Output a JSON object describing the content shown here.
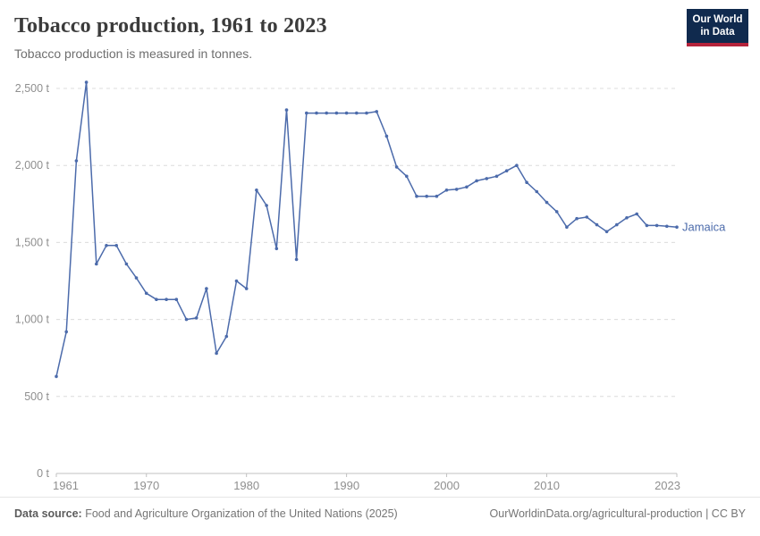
{
  "header": {
    "title": "Tobacco production, 1961 to 2023",
    "subtitle": "Tobacco production is measured in tonnes."
  },
  "logo": {
    "line1": "Our World",
    "line2": "in Data",
    "bg_color": "#102a4e",
    "bar_color": "#b5233b"
  },
  "chart_data": {
    "type": "line",
    "title": "Tobacco production, 1961 to 2023",
    "unit": "t",
    "xlim": [
      1961,
      2023
    ],
    "ylim": [
      0,
      2500
    ],
    "grid": "horizontal-dashed",
    "legend_position": "end-of-line",
    "x_ticks": [
      {
        "value": 1961,
        "label": "1961"
      },
      {
        "value": 1970,
        "label": "1970"
      },
      {
        "value": 1980,
        "label": "1980"
      },
      {
        "value": 1990,
        "label": "1990"
      },
      {
        "value": 2000,
        "label": "2000"
      },
      {
        "value": 2010,
        "label": "2010"
      },
      {
        "value": 2023,
        "label": "2023"
      }
    ],
    "y_ticks": [
      {
        "value": 0,
        "label": "0 t"
      },
      {
        "value": 500,
        "label": "500 t"
      },
      {
        "value": 1000,
        "label": "1,000 t"
      },
      {
        "value": 1500,
        "label": "1,500 t"
      },
      {
        "value": 2000,
        "label": "2,000 t"
      },
      {
        "value": 2500,
        "label": "2,500 t"
      }
    ],
    "series": [
      {
        "name": "Jamaica",
        "color": "#4c6bab",
        "years": [
          1961,
          1962,
          1963,
          1964,
          1965,
          1966,
          1967,
          1968,
          1969,
          1970,
          1971,
          1972,
          1973,
          1974,
          1975,
          1976,
          1977,
          1978,
          1979,
          1980,
          1981,
          1982,
          1983,
          1984,
          1985,
          1986,
          1987,
          1988,
          1989,
          1990,
          1991,
          1992,
          1993,
          1994,
          1995,
          1996,
          1997,
          1998,
          1999,
          2000,
          2001,
          2002,
          2003,
          2004,
          2005,
          2006,
          2007,
          2008,
          2009,
          2010,
          2011,
          2012,
          2013,
          2014,
          2015,
          2016,
          2017,
          2018,
          2019,
          2020,
          2021,
          2022,
          2023
        ],
        "values": [
          630,
          920,
          2030,
          2540,
          1360,
          1480,
          1480,
          1360,
          1270,
          1170,
          1130,
          1130,
          1130,
          1000,
          1010,
          1200,
          780,
          890,
          1250,
          1200,
          1840,
          1740,
          1460,
          2360,
          1390,
          2340,
          2340,
          2340,
          2340,
          2340,
          2340,
          2340,
          2350,
          2190,
          1990,
          1930,
          1800,
          1800,
          1800,
          1840,
          1845,
          1860,
          1900,
          1915,
          1930,
          1965,
          2000,
          1890,
          1830,
          1760,
          1700,
          1600,
          1655,
          1665,
          1615,
          1570,
          1615,
          1660,
          1685,
          1610,
          1610,
          1605,
          1600
        ]
      }
    ],
    "colors": {
      "grid": "#dcdcdc",
      "axis": "#c0c0c0",
      "tick_text": "#8f8f8f"
    }
  },
  "footer": {
    "source_label": "Data source:",
    "source_text": " Food and Agriculture Organization of the United Nations (2025)",
    "link_text": "OurWorldinData.org/agricultural-production | CC BY"
  }
}
